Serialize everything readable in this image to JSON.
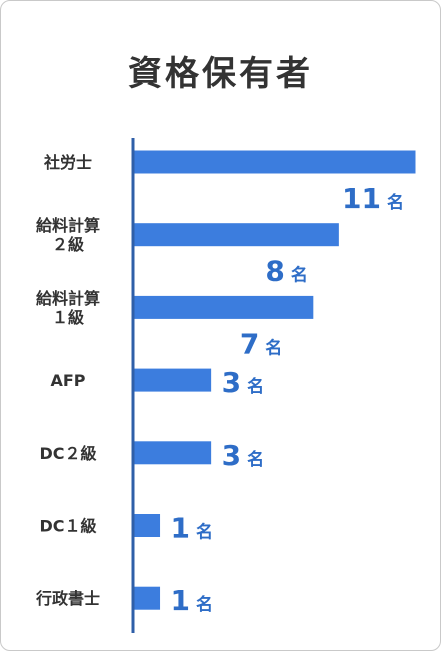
{
  "chart_data": {
    "type": "bar",
    "orientation": "horizontal",
    "title": "資格保有者",
    "categories": [
      [
        "社労士"
      ],
      [
        "給料計算",
        "２級"
      ],
      [
        "給料計算",
        "１級"
      ],
      [
        "AFP"
      ],
      [
        "DC２級"
      ],
      [
        "DC１級"
      ],
      [
        "行政書士"
      ]
    ],
    "values": [
      11,
      8,
      7,
      3,
      3,
      1,
      1
    ],
    "unit": "名",
    "xlim": [
      0,
      11
    ],
    "grid": false,
    "legend": "none",
    "bar_color": "#3c7dde",
    "label_color": "#2e6dc7",
    "axis_color": "#2f5fa8"
  }
}
